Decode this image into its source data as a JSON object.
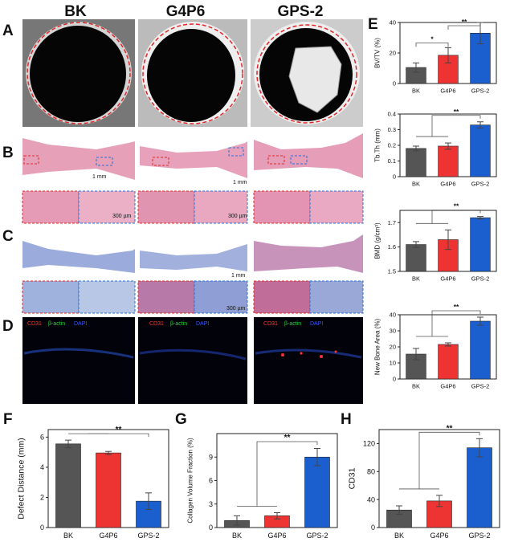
{
  "columns": [
    "BK",
    "G4P6",
    "GPS-2"
  ],
  "panel_letters": [
    "A",
    "B",
    "C",
    "D",
    "E",
    "F",
    "G",
    "H"
  ],
  "scale_bars": {
    "mm": "1 mm",
    "um": "300 µm"
  },
  "stain_legend": {
    "cd31": "CD31",
    "actin": "β-actin",
    "dapi": "DAPI"
  },
  "colors": {
    "bk": "#555555",
    "g4p6": "#ee3333",
    "gps2": "#1b5fcf",
    "dashed_red": "#e0282a",
    "dashed_blue": "#2a6fd6"
  },
  "chart_data": [
    {
      "id": "E1",
      "type": "bar",
      "categories": [
        "BK",
        "G4P6",
        "GPS-2"
      ],
      "values": [
        10.5,
        18.5,
        33
      ],
      "errors": [
        3,
        5,
        7
      ],
      "ylabel": "BV/TV (%)",
      "ylim": [
        0,
        40
      ],
      "yticks": [
        0,
        20,
        40
      ],
      "significance": [
        {
          "from": 0,
          "to": 1,
          "label": "*"
        },
        {
          "from": 1,
          "to": 2,
          "label": "**"
        }
      ]
    },
    {
      "id": "E2",
      "type": "bar",
      "categories": [
        "BK",
        "G4P6",
        "GPS-2"
      ],
      "values": [
        0.18,
        0.195,
        0.33
      ],
      "errors": [
        0.015,
        0.02,
        0.02
      ],
      "ylabel": "Tb.Th (mm)",
      "ylim": [
        0,
        0.4
      ],
      "yticks": [
        0.0,
        0.1,
        0.2,
        0.3,
        0.4
      ],
      "significance": [
        {
          "from": "0-1",
          "to": 2,
          "label": "**"
        }
      ]
    },
    {
      "id": "E3",
      "type": "bar",
      "categories": [
        "BK",
        "G4P6",
        "GPS-2"
      ],
      "values": [
        1.61,
        1.63,
        1.72
      ],
      "errors": [
        0.012,
        0.04,
        0.005
      ],
      "ylabel": "BMD (g/cm³)",
      "ylim": [
        1.5,
        1.75
      ],
      "yticks": [
        1.5,
        1.6,
        1.7
      ],
      "significance": [
        {
          "from": "0-1",
          "to": 2,
          "label": "**"
        }
      ]
    },
    {
      "id": "E4",
      "type": "bar",
      "categories": [
        "BK",
        "G4P6",
        "GPS-2"
      ],
      "values": [
        15.5,
        21.5,
        36
      ],
      "errors": [
        3.5,
        1,
        2.5
      ],
      "ylabel": "New Bone Area (%)",
      "ylim": [
        0,
        40
      ],
      "yticks": [
        0,
        10,
        20,
        30,
        40
      ],
      "significance": [
        {
          "from": "0-1",
          "to": 2,
          "label": "**"
        }
      ]
    },
    {
      "id": "F",
      "type": "bar",
      "categories": [
        "BK",
        "G4P6",
        "GPS-2"
      ],
      "values": [
        5.55,
        4.95,
        1.75
      ],
      "errors": [
        0.25,
        0.1,
        0.55
      ],
      "ylabel": "Defect Distance (mm)",
      "ylim": [
        0,
        6.5
      ],
      "yticks": [
        0,
        2,
        4,
        6
      ],
      "significance": [
        {
          "from": "0-1",
          "to": 2,
          "label": "**"
        }
      ]
    },
    {
      "id": "G",
      "type": "bar",
      "categories": [
        "BK",
        "G4P6",
        "GPS-2"
      ],
      "values": [
        0.9,
        1.5,
        9.0
      ],
      "errors": [
        0.6,
        0.4,
        1.1
      ],
      "ylabel": "Collagen Volume Fraction (%)",
      "ylim": [
        0,
        12
      ],
      "yticks": [
        0,
        3,
        6,
        9
      ],
      "significance": [
        {
          "from": "0-1",
          "to": 2,
          "label": "**"
        }
      ]
    },
    {
      "id": "H",
      "type": "bar",
      "categories": [
        "BK",
        "G4P6",
        "GPS-2"
      ],
      "values": [
        25,
        38,
        114
      ],
      "errors": [
        6,
        8,
        13
      ],
      "ylabel": "CD31",
      "ylim": [
        0,
        140
      ],
      "yticks": [
        0,
        40,
        80,
        120
      ],
      "significance": [
        {
          "from": "0-1",
          "to": 2,
          "label": "**"
        }
      ]
    }
  ]
}
